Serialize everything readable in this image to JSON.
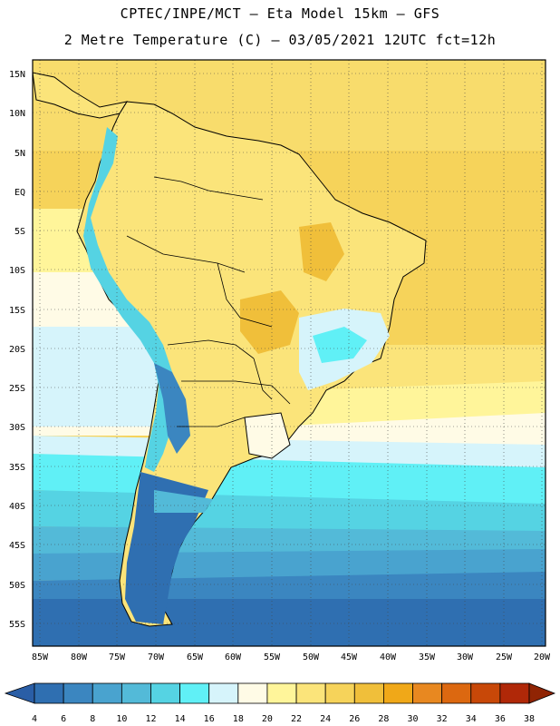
{
  "header": {
    "line1": "CPTEC/INPE/MCT –  Eta Model 15km – GFS",
    "line2": "2 Metre Temperature (C) – 03/05/2021 12UTC fct=12h"
  },
  "map": {
    "region": "South America",
    "lat_labels": [
      "15N",
      "10N",
      "5N",
      "EQ",
      "5S",
      "10S",
      "15S",
      "20S",
      "25S",
      "30S",
      "35S",
      "40S",
      "45S",
      "50S",
      "55S"
    ],
    "lon_labels": [
      "85W",
      "80W",
      "75W",
      "70W",
      "65W",
      "60W",
      "55W",
      "50W",
      "45W",
      "40W",
      "35W",
      "30W",
      "25W",
      "20W"
    ],
    "gridlines": "dotted"
  },
  "legend": {
    "levels": [
      "4",
      "6",
      "8",
      "10",
      "12",
      "14",
      "16",
      "18",
      "20",
      "22",
      "24",
      "26",
      "28",
      "30",
      "32",
      "34",
      "36",
      "38"
    ],
    "colors": [
      "#2a5ea6",
      "#2f6fb1",
      "#3b86c0",
      "#49a3cf",
      "#53bad8",
      "#55d3e3",
      "#60f0f6",
      "#d6f4fb",
      "#fffbe6",
      "#fff59a",
      "#fbe47a",
      "#f6d35a",
      "#f0bf3a",
      "#f0a818",
      "#e88820",
      "#dc6810",
      "#c84808",
      "#b02808",
      "#902404"
    ]
  }
}
